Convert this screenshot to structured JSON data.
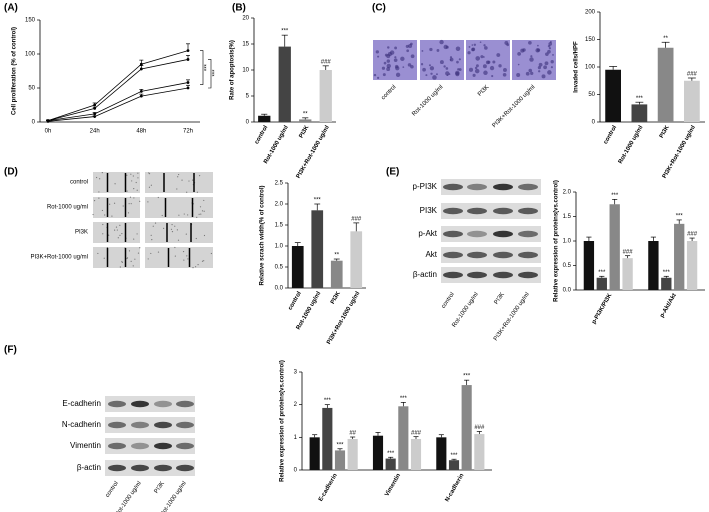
{
  "panel_labels": [
    "(A)",
    "(B)",
    "(C)",
    "(D)",
    "(E)",
    "(F)"
  ],
  "images": {
    "C": {
      "column_labels": [
        "control",
        "Rot-1000 ug/ml",
        "PI3K",
        "PI3K+Rot-1000 ug/ml"
      ]
    },
    "D": {
      "row_labels": [
        "control",
        "Rot-1000 ug/ml",
        "PI3K",
        "PI3K+Rot-1000 ug/ml"
      ]
    },
    "E": {
      "row_labels": [
        "p-PI3K",
        "PI3K",
        "p-Akt",
        "Akt",
        "β-actin"
      ],
      "column_labels": [
        "control",
        "Rot-1000 ug/ml",
        "PI3K",
        "PI3K+Rot-1000 ug/ml"
      ]
    },
    "F": {
      "row_labels": [
        "E-cadherin",
        "N-cadherin",
        "Vimentin",
        "β-actin"
      ],
      "column_labels": [
        "control",
        "Rot-1000 ug/ml",
        "PI3K",
        "PI3K+Rot-1000 ug/ml"
      ]
    }
  },
  "chart_data": [
    {
      "type": "line",
      "y_label": "Cell proliferation (% of control)",
      "categories": [
        "0h",
        "24h",
        "48h",
        "72h"
      ],
      "series": [
        {
          "color": "#000000",
          "values": [
            2,
            25,
            85,
            105
          ],
          "errors": [
            1,
            3,
            6,
            10
          ]
        },
        {
          "color": "#000000",
          "values": [
            2,
            20,
            78,
            92
          ],
          "errors": [
            1,
            2,
            5,
            6
          ]
        },
        {
          "color": "#000000",
          "values": [
            2,
            12,
            45,
            58
          ],
          "errors": [
            1,
            2,
            3,
            4
          ]
        },
        {
          "color": "#000000",
          "values": [
            1,
            8,
            38,
            50
          ],
          "errors": [
            1,
            1,
            3,
            4
          ]
        }
      ],
      "annotations": [
        "***",
        "***"
      ],
      "ylim": [
        0,
        150
      ],
      "yticks": [
        0,
        50,
        100,
        150
      ]
    },
    {
      "type": "bar",
      "y_label": "Rate of apoptosis(%)",
      "categories": [
        "control",
        "Rot-1000 ug/ml",
        "PI3K",
        "PI3K+Rot-1000 ug/ml"
      ],
      "values": [
        1.2,
        14.5,
        0.5,
        10
      ],
      "errors": [
        0.3,
        2.2,
        0.3,
        0.8
      ],
      "colors": [
        "#111111",
        "#444444",
        "#888888",
        "#cccccc"
      ],
      "annotations": [
        null,
        "***",
        "**",
        "###"
      ],
      "ylim": [
        0,
        20
      ],
      "yticks": [
        0,
        5,
        10,
        15,
        20
      ]
    },
    {
      "type": "bar",
      "y_label": "Invaded cells/HPF",
      "categories": [
        "control",
        "Rot-1000 ug/ml",
        "PI3K",
        "PI3K+Rot-1000 ug/ml"
      ],
      "values": [
        95,
        32,
        135,
        75
      ],
      "errors": [
        6,
        4,
        10,
        5
      ],
      "colors": [
        "#111111",
        "#444444",
        "#888888",
        "#cccccc"
      ],
      "annotations": [
        null,
        "***",
        "**",
        "###"
      ],
      "ylim": [
        0,
        200
      ],
      "yticks": [
        0,
        50,
        100,
        150,
        200
      ]
    },
    {
      "type": "bar",
      "y_label": "Relative scrach width(% of control)",
      "categories": [
        "control",
        "Rot-1000 ug/ml",
        "PI3K",
        "PI3K+Rot-1000 ug/ml"
      ],
      "values": [
        1.0,
        1.85,
        0.65,
        1.35
      ],
      "errors": [
        0.08,
        0.15,
        0.04,
        0.2
      ],
      "colors": [
        "#111111",
        "#444444",
        "#888888",
        "#cccccc"
      ],
      "annotations": [
        null,
        "***",
        "**",
        "###"
      ],
      "ylim": [
        0,
        2.5
      ],
      "yticks": [
        {
          "value": 0,
          "label": "0.0"
        },
        0.5,
        {
          "value": 1,
          "label": "1.0"
        },
        1.5,
        {
          "value": 2,
          "label": "2.0"
        },
        2.5
      ]
    },
    {
      "type": "grouped_bar",
      "y_label": "Relative expression of proteins(vs.control)",
      "categories": [
        "p-PI3K/PI3K",
        "p-Akt/Akt"
      ],
      "series": [
        {
          "color": "#111111",
          "values": [
            1.0,
            1.0
          ],
          "errors": [
            0.08,
            0.08
          ],
          "annotations": [
            null,
            null
          ]
        },
        {
          "color": "#444444",
          "values": [
            0.25,
            0.25
          ],
          "errors": [
            0.03,
            0.03
          ],
          "annotations": [
            "***",
            "***"
          ]
        },
        {
          "color": "#888888",
          "values": [
            1.75,
            1.35
          ],
          "errors": [
            0.1,
            0.08
          ],
          "annotations": [
            "***",
            "***"
          ]
        },
        {
          "color": "#cccccc",
          "values": [
            0.65,
            1.0
          ],
          "errors": [
            0.05,
            0.06
          ],
          "annotations": [
            "###",
            "###"
          ]
        }
      ],
      "ylim": [
        0,
        2.0
      ],
      "yticks": [
        {
          "value": 0,
          "label": "0.0"
        },
        0.5,
        {
          "value": 1,
          "label": "1.0"
        },
        1.5,
        {
          "value": 2,
          "label": "2.0"
        }
      ]
    },
    {
      "type": "grouped_bar",
      "y_label": "Relative expression of proteins(vs.control)",
      "categories": [
        "E-cadherin",
        "Vimentin",
        "N-cadherin"
      ],
      "series": [
        {
          "color": "#111111",
          "values": [
            1.0,
            1.05,
            1.0
          ],
          "errors": [
            0.08,
            0.1,
            0.08
          ],
          "annotations": [
            null,
            null,
            null
          ]
        },
        {
          "color": "#444444",
          "values": [
            1.9,
            0.35,
            0.3
          ],
          "errors": [
            0.1,
            0.04,
            0.03
          ],
          "annotations": [
            "***",
            "***",
            "***"
          ]
        },
        {
          "color": "#888888",
          "values": [
            0.6,
            1.95,
            2.6
          ],
          "errors": [
            0.05,
            0.12,
            0.15
          ],
          "annotations": [
            "***",
            "***",
            "***"
          ]
        },
        {
          "color": "#cccccc",
          "values": [
            0.95,
            0.95,
            1.1
          ],
          "errors": [
            0.06,
            0.07,
            0.08
          ],
          "annotations": [
            "##",
            "###",
            "###"
          ]
        }
      ],
      "ylim": [
        0,
        3
      ],
      "yticks": [
        0,
        1,
        2,
        3
      ]
    }
  ]
}
